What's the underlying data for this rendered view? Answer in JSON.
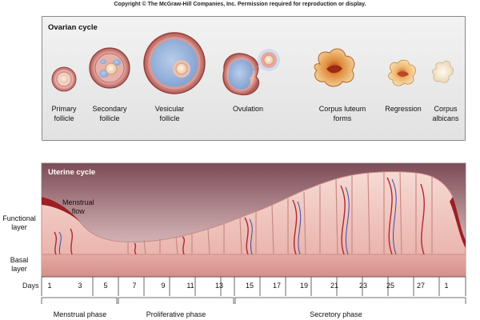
{
  "copyright": "Copyright © The McGraw-Hill Companies, Inc. Permission required for reproduction or display.",
  "ovarian": {
    "title": "Ovarian cycle",
    "stages": [
      {
        "line1": "Primary",
        "line2": "follicle"
      },
      {
        "line1": "Secondary",
        "line2": "follicle"
      },
      {
        "line1": "Vesicular",
        "line2": "follicle"
      },
      {
        "line1": "Ovulation",
        "line2": ""
      },
      {
        "line1": "Corpus luteum",
        "line2": "forms"
      },
      {
        "line1": "Regression",
        "line2": ""
      },
      {
        "line1": "Corpus",
        "line2": "albicans"
      }
    ]
  },
  "uterine": {
    "title": "Uterine cycle",
    "menstrual_flow": {
      "line1": "Menstrual",
      "line2": "flow"
    },
    "functional_layer": {
      "line1": "Functional",
      "line2": "layer"
    },
    "basal_layer": {
      "line1": "Basal",
      "line2": "layer"
    },
    "days_label": "Days",
    "days": [
      "1",
      "3",
      "5",
      "7",
      "9",
      "11",
      "13",
      "15",
      "17",
      "19",
      "21",
      "23",
      "25",
      "27",
      "1"
    ],
    "phases": [
      "Menstrual phase",
      "Proliferative phase",
      "Secretory phase"
    ]
  }
}
